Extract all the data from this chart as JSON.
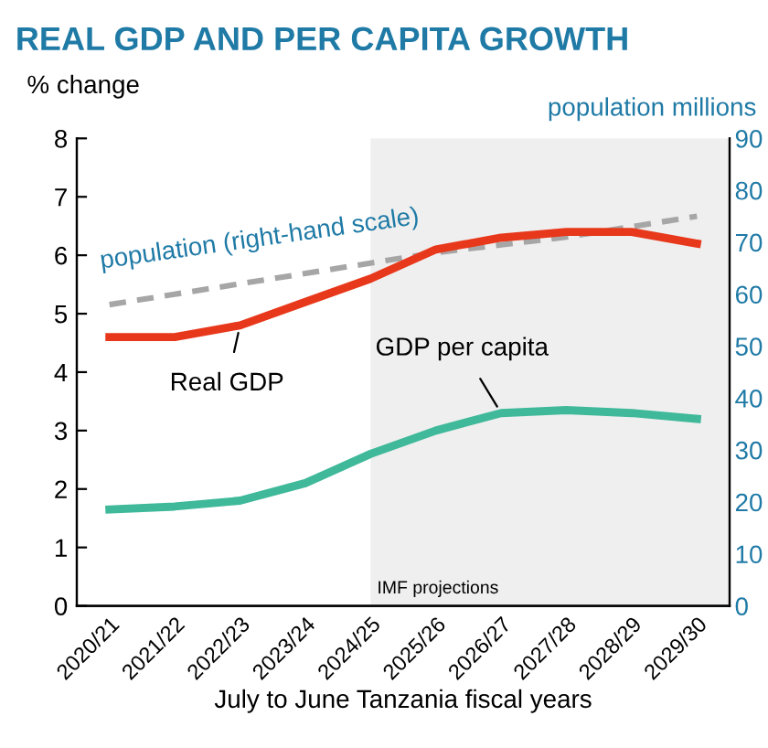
{
  "chart_data": {
    "type": "line",
    "title": "REAL GDP AND PER CAPITA GROWTH",
    "ylabel": "% change",
    "y2label": "population millions",
    "xlabel": "July to June Tanzania fiscal years",
    "categories": [
      "2020/21",
      "2021/22",
      "2022/23",
      "2023/24",
      "2024/25",
      "2025/26",
      "2026/27",
      "2027/28",
      "2028/29",
      "2029/30"
    ],
    "series": [
      {
        "name": "Real GDP",
        "color": "#e8381b",
        "values": [
          4.6,
          4.6,
          4.8,
          5.2,
          5.6,
          6.1,
          6.3,
          6.4,
          6.4,
          6.2
        ]
      },
      {
        "name": "GDP per capita",
        "color": "#3fb99a",
        "values": [
          1.65,
          1.7,
          1.8,
          2.1,
          2.6,
          3.0,
          3.3,
          3.35,
          3.3,
          3.2
        ]
      },
      {
        "name": "population (right-hand scale)",
        "color": "#a6a6a6",
        "axis": "y2",
        "line_style": "dashed",
        "values": [
          58,
          60,
          62,
          64,
          66,
          68,
          69.5,
          71,
          73,
          75
        ]
      }
    ],
    "ylim": [
      0,
      8
    ],
    "yticks": [
      0,
      1,
      2,
      3,
      4,
      5,
      6,
      7,
      8
    ],
    "y2lim": [
      0,
      90
    ],
    "y2ticks": [
      0,
      10,
      20,
      30,
      40,
      50,
      60,
      70,
      80,
      90
    ],
    "bands": [
      {
        "axis": "x",
        "from": "2024/25",
        "to": "2029/30",
        "label": "IMF projections",
        "color": "#efefef"
      }
    ],
    "grid": false,
    "legend": false,
    "marker": "none",
    "line_style": "solid"
  }
}
